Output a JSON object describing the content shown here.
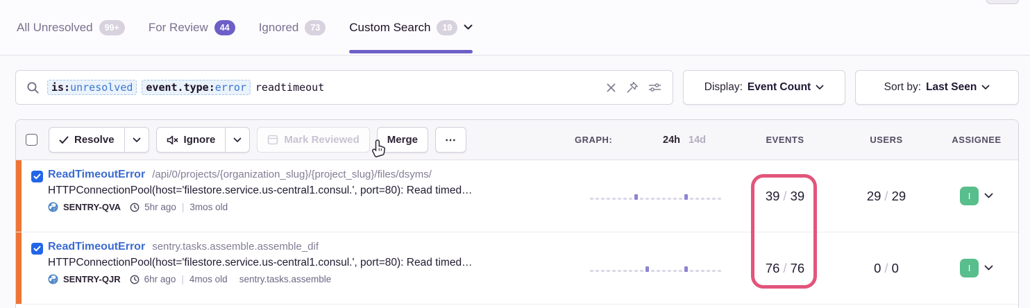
{
  "tabs": {
    "items": [
      {
        "label": "All Unresolved",
        "badge": "99+"
      },
      {
        "label": "For Review",
        "badge": "44"
      },
      {
        "label": "Ignored",
        "badge": "73"
      },
      {
        "label": "Custom Search",
        "badge": "19"
      }
    ]
  },
  "search": {
    "token1_key": "is:",
    "token1_value": "unresolved",
    "token2_key": "event.type:",
    "token2_value": "error",
    "free_text": "readtimeout"
  },
  "display": {
    "label": "Display:",
    "value": "Event Count"
  },
  "sort": {
    "label": "Sort by:",
    "value": "Last Seen"
  },
  "toolbar": {
    "resolve": "Resolve",
    "ignore": "Ignore",
    "mark_reviewed": "Mark Reviewed",
    "merge": "Merge",
    "more": "⋯"
  },
  "columns": {
    "graph": "GRAPH:",
    "range_24h": "24h",
    "range_14d": "14d",
    "events": "EVENTS",
    "users": "USERS",
    "assignee": "ASSIGNEE"
  },
  "issues": [
    {
      "title": "ReadTimeoutError",
      "subtitle": "/api/0/projects/{organization_slug}/{project_slug}/files/dsyms/",
      "message": "HTTPConnectionPool(host='filestore.service.us-central1.consul.', port=80): Read timed…",
      "short_id": "SENTRY-QVA",
      "last_seen": "5hr ago",
      "first_seen": "3mos old",
      "annotation": "",
      "events": "39",
      "events_total": "39",
      "users": "29",
      "users_total": "29",
      "assignee_initial": "I",
      "sparkline": [
        0,
        0,
        0,
        0,
        0,
        0,
        0,
        0,
        1,
        0,
        0,
        0,
        0,
        0,
        0,
        0,
        0,
        1,
        0,
        0,
        0,
        0,
        0,
        0
      ]
    },
    {
      "title": "ReadTimeoutError",
      "subtitle": "sentry.tasks.assemble.assemble_dif",
      "message": "HTTPConnectionPool(host='filestore.service.us-central1.consul.', port=80): Read timed…",
      "short_id": "SENTRY-QJR",
      "last_seen": "6hr ago",
      "first_seen": "4mos old",
      "annotation": "sentry.tasks.assemble",
      "events": "76",
      "events_total": "76",
      "users": "0",
      "users_total": "0",
      "assignee_initial": "I",
      "sparkline": [
        0,
        0,
        0,
        0,
        0,
        0,
        0,
        0,
        0,
        0,
        1,
        0,
        0,
        0,
        0,
        0,
        0,
        1,
        0,
        0,
        0,
        0,
        0,
        0
      ]
    }
  ],
  "colors": {
    "accent_purple": "#6C5FC7",
    "annotation_pink": "#E2557B",
    "level_error_orange": "#EE7434",
    "assignee_green": "#57BE8C",
    "link_blue": "#3B6BD1",
    "checkbox_blue": "#2165E8"
  }
}
